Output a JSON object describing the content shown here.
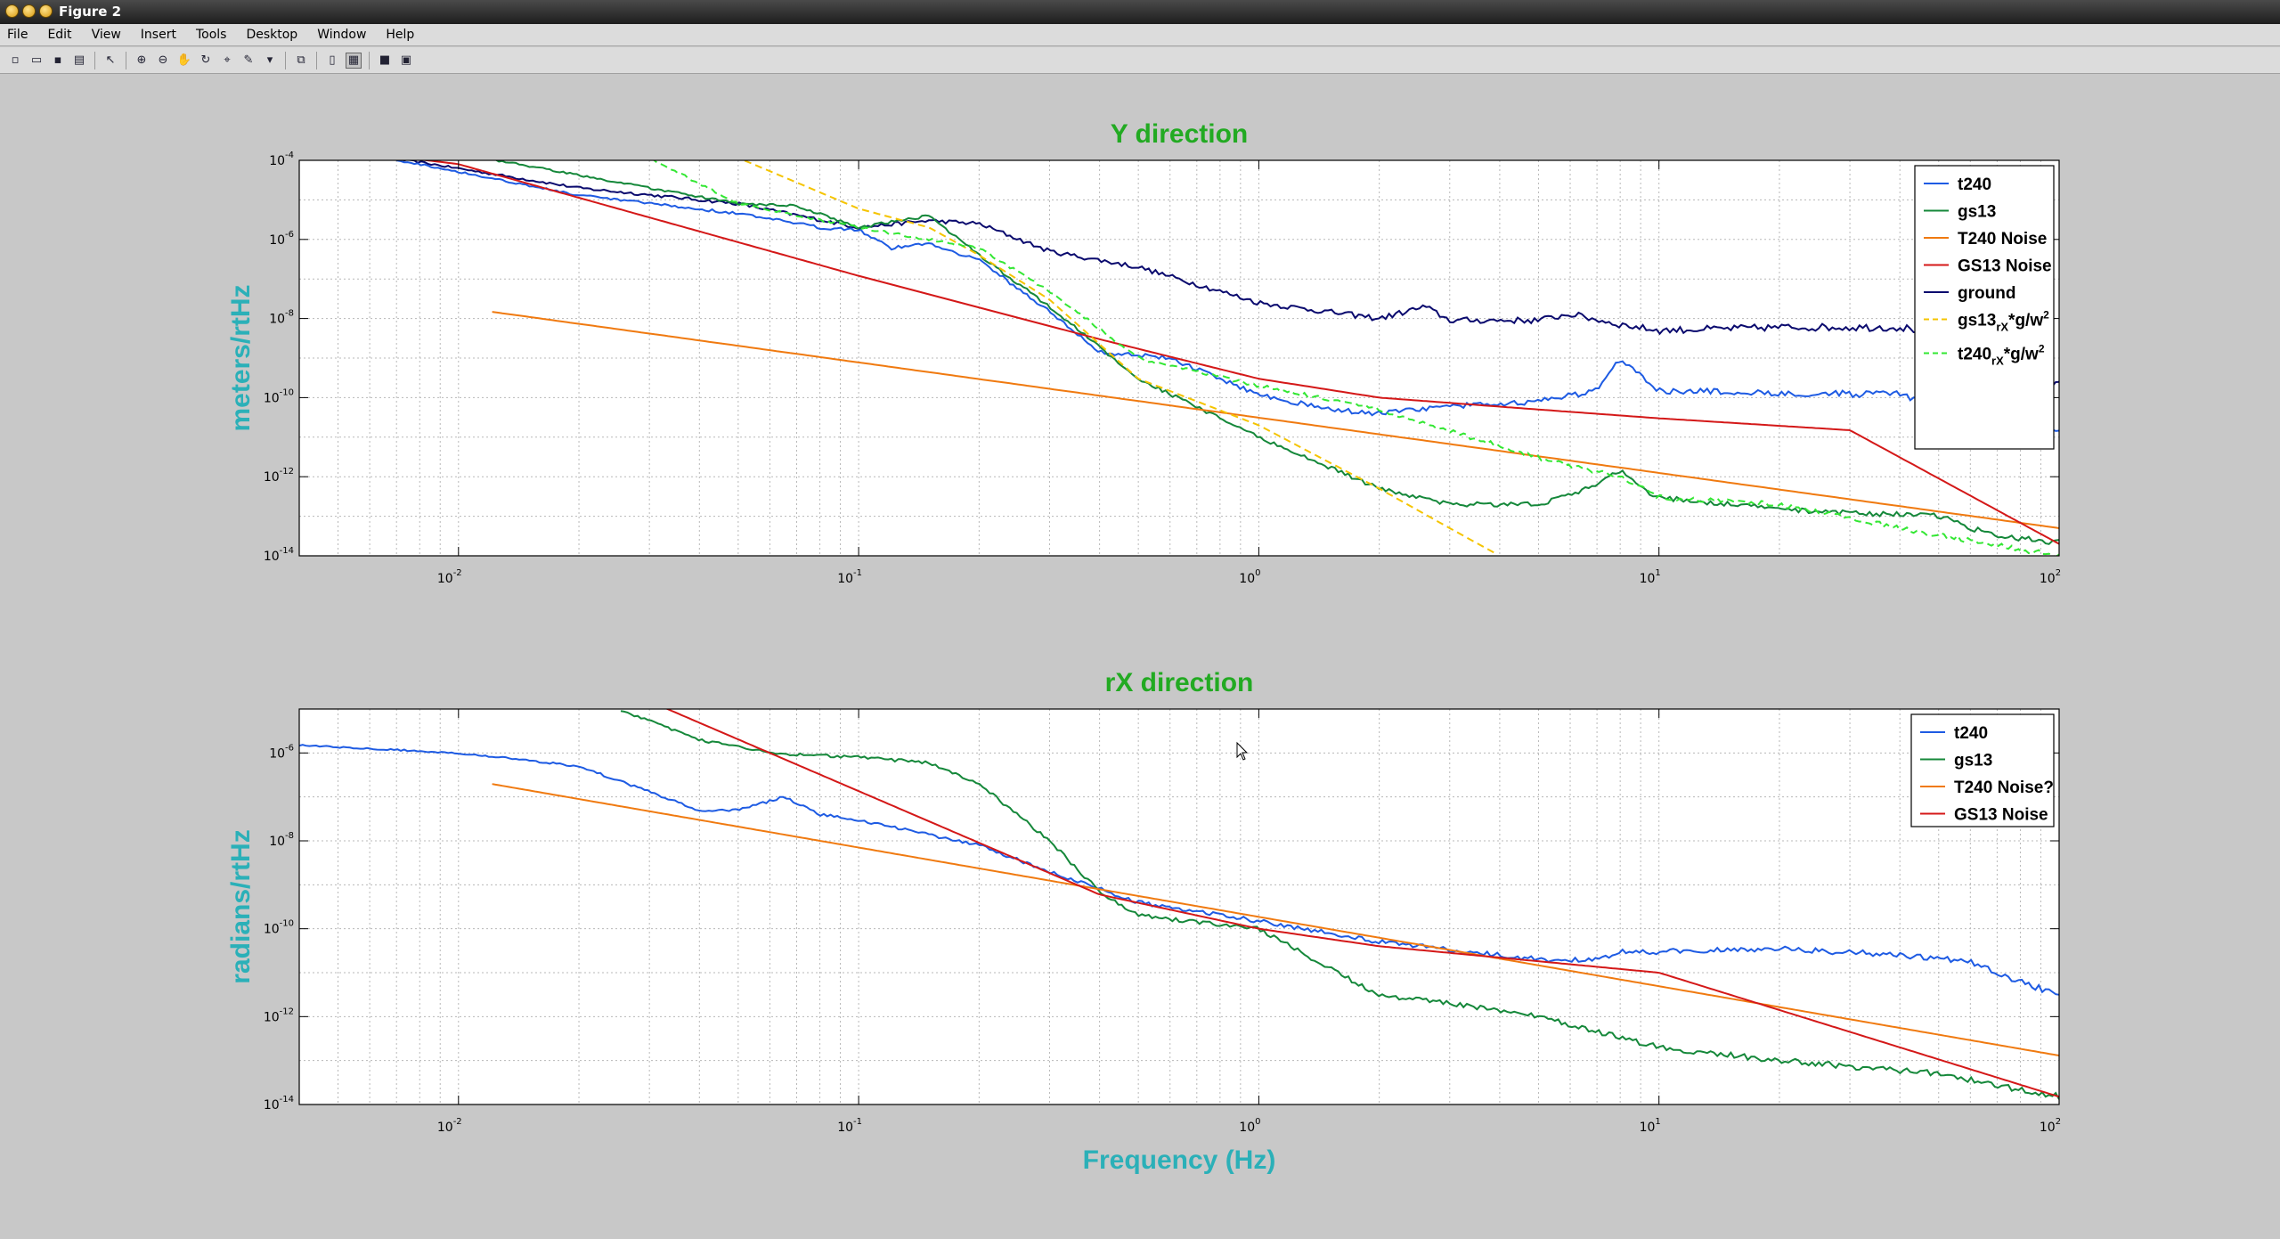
{
  "window": {
    "title": "Figure 2"
  },
  "menu": [
    "File",
    "Edit",
    "View",
    "Insert",
    "Tools",
    "Desktop",
    "Window",
    "Help"
  ],
  "toolbar": [
    {
      "name": "new-figure-icon",
      "glyph": "▫"
    },
    {
      "name": "open-file-icon",
      "glyph": "▭"
    },
    {
      "name": "save-icon",
      "glyph": "▪"
    },
    {
      "name": "print-icon",
      "glyph": "▤"
    },
    {
      "sep": true
    },
    {
      "name": "edit-plot-arrow-icon",
      "glyph": "↖"
    },
    {
      "sep": true
    },
    {
      "name": "zoom-in-icon",
      "glyph": "⊕"
    },
    {
      "name": "zoom-out-icon",
      "glyph": "⊖"
    },
    {
      "name": "pan-hand-icon",
      "glyph": "✋"
    },
    {
      "name": "rotate-3d-icon",
      "glyph": "↻"
    },
    {
      "name": "data-cursor-icon",
      "glyph": "⌖"
    },
    {
      "name": "brush-icon",
      "glyph": "✎"
    },
    {
      "name": "brush-dropdown-icon",
      "glyph": "▾"
    },
    {
      "sep": true
    },
    {
      "name": "link-plot-icon",
      "glyph": "⧉"
    },
    {
      "sep": true
    },
    {
      "name": "colorbar-icon",
      "glyph": "▯"
    },
    {
      "name": "legend-icon",
      "glyph": "▦",
      "active": true
    },
    {
      "sep": true
    },
    {
      "name": "hide-plot-tools-icon",
      "glyph": "■"
    },
    {
      "name": "show-plot-tools-icon",
      "glyph": "▣"
    }
  ],
  "colors": {
    "blue": "#1e5be3",
    "green": "#15883a",
    "orange": "#f07a10",
    "red": "#d41818",
    "navy": "#0a0a6e",
    "yellow": "#f5c400",
    "lime": "#33e733",
    "title": "#22aa22",
    "label": "#2bb0b8"
  },
  "chart_data": [
    {
      "type": "line",
      "title": "Y direction",
      "xlabel": "",
      "ylabel": "meters/rtHz",
      "xscale": "log",
      "yscale": "log",
      "xlim": [
        0.004,
        100
      ],
      "ylim": [
        1e-14,
        0.0001
      ],
      "grid": true,
      "legend_position": "top-right",
      "xticks": [
        {
          "base": "10",
          "exp": "-2"
        },
        {
          "base": "10",
          "exp": "-1"
        },
        {
          "base": "10",
          "exp": "0"
        },
        {
          "base": "10",
          "exp": "1"
        },
        {
          "base": "10",
          "exp": "2"
        }
      ],
      "yticks": [
        {
          "base": "10",
          "exp": "-4"
        },
        {
          "base": "10",
          "exp": "-6"
        },
        {
          "base": "10",
          "exp": "-8"
        },
        {
          "base": "10",
          "exp": "-10"
        },
        {
          "base": "10",
          "exp": "-12"
        },
        {
          "base": "10",
          "exp": "-14"
        }
      ],
      "legend": [
        {
          "text": "t240",
          "color": "blue",
          "dash": false
        },
        {
          "text": "gs13",
          "color": "green",
          "dash": false
        },
        {
          "text": "T240 Noise",
          "color": "orange",
          "dash": false
        },
        {
          "text": "GS13 Noise",
          "color": "red",
          "dash": false
        },
        {
          "text": "ground",
          "color": "navy",
          "dash": false
        },
        {
          "text": "gs13",
          "sub": "rX",
          "tail": "*g/w",
          "sup": "2",
          "color": "yellow",
          "dash": true
        },
        {
          "text": "t240",
          "sub": "rX",
          "tail": "*g/w",
          "sup": "2",
          "color": "lime",
          "dash": true
        }
      ],
      "series": [
        {
          "name": "ground",
          "color": "navy",
          "noise": 0.07,
          "points": [
            [
              0.004,
              0.00022
            ],
            [
              0.008,
              9e-05
            ],
            [
              0.02,
              2e-05
            ],
            [
              0.05,
              8e-06
            ],
            [
              0.1,
              2e-06
            ],
            [
              0.15,
              3e-06
            ],
            [
              0.2,
              2.5e-06
            ],
            [
              0.3,
              5e-07
            ],
            [
              0.5,
              2e-07
            ],
            [
              1,
              2.5e-08
            ],
            [
              2,
              1e-08
            ],
            [
              2.6,
              2e-08
            ],
            [
              3,
              9e-09
            ],
            [
              5,
              9e-09
            ],
            [
              6,
              1.3e-08
            ],
            [
              8,
              7e-09
            ],
            [
              10,
              5e-09
            ],
            [
              20,
              6e-09
            ],
            [
              40,
              6e-09
            ],
            [
              45,
              5e-09
            ],
            [
              50,
              8e-10
            ],
            [
              60,
              5e-10
            ],
            [
              100,
              2e-10
            ]
          ]
        },
        {
          "name": "t240",
          "color": "blue",
          "noise": 0.06,
          "points": [
            [
              0.004,
              0.00028
            ],
            [
              0.008,
              8e-05
            ],
            [
              0.02,
              1.3e-05
            ],
            [
              0.05,
              4.5e-06
            ],
            [
              0.08,
              2e-06
            ],
            [
              0.1,
              1.8e-06
            ],
            [
              0.12,
              6e-07
            ],
            [
              0.15,
              8e-07
            ],
            [
              0.2,
              3e-07
            ],
            [
              0.3,
              1.5e-08
            ],
            [
              0.4,
              1.4e-09
            ],
            [
              0.5,
              1.2e-09
            ],
            [
              0.6,
              1e-09
            ],
            [
              0.8,
              3e-10
            ],
            [
              1,
              1.2e-10
            ],
            [
              1.5,
              5e-11
            ],
            [
              2,
              4e-11
            ],
            [
              3,
              6e-11
            ],
            [
              5,
              8e-11
            ],
            [
              7,
              1.5e-10
            ],
            [
              8,
              1e-09
            ],
            [
              9,
              4e-10
            ],
            [
              10,
              1.5e-10
            ],
            [
              20,
              1.3e-10
            ],
            [
              40,
              1.2e-10
            ],
            [
              60,
              3e-11
            ],
            [
              100,
              1.5e-11
            ]
          ]
        },
        {
          "name": "gs13",
          "color": "green",
          "noise": 0.05,
          "points": [
            [
              0.004,
              0.005
            ],
            [
              0.01,
              0.00015
            ],
            [
              0.03,
              2e-05
            ],
            [
              0.05,
              8e-06
            ],
            [
              0.07,
              7e-06
            ],
            [
              0.1,
              2e-06
            ],
            [
              0.15,
              4e-06
            ],
            [
              0.2,
              4e-07
            ],
            [
              0.3,
              2e-08
            ],
            [
              0.5,
              3e-10
            ],
            [
              1,
              1e-11
            ],
            [
              2,
              5e-13
            ],
            [
              3,
              2e-13
            ],
            [
              5,
              2e-13
            ],
            [
              7,
              6e-13
            ],
            [
              8,
              1.5e-12
            ],
            [
              9,
              5e-13
            ],
            [
              10,
              3e-13
            ],
            [
              20,
              1.5e-13
            ],
            [
              50,
              1e-13
            ],
            [
              70,
              3e-14
            ],
            [
              100,
              2.2e-14
            ]
          ]
        },
        {
          "name": "T240 Noise",
          "color": "orange",
          "noise": 0,
          "points": [
            [
              0.012,
              1.5e-08
            ],
            [
              100,
              5e-14
            ]
          ]
        },
        {
          "name": "GS13 Noise",
          "color": "red",
          "noise": 0,
          "points": [
            [
              0.004,
              0.00025
            ],
            [
              0.01,
              8e-05
            ],
            [
              0.1,
              1.2e-07
            ],
            [
              0.4,
              3e-09
            ],
            [
              1,
              3e-10
            ],
            [
              2,
              1e-10
            ],
            [
              5,
              5e-11
            ],
            [
              10,
              3e-11
            ],
            [
              30,
              1.5e-11
            ],
            [
              100,
              2e-14
            ]
          ]
        },
        {
          "name": "gs13 rX*g/w2",
          "color": "yellow",
          "noise": 0,
          "dash": true,
          "points": [
            [
              0.04,
              0.0003
            ],
            [
              0.1,
              6e-06
            ],
            [
              0.15,
              2e-06
            ],
            [
              0.2,
              4e-07
            ],
            [
              0.3,
              3e-08
            ],
            [
              0.5,
              3e-10
            ],
            [
              1,
              2e-11
            ],
            [
              2,
              5e-13
            ],
            [
              3,
              5e-14
            ],
            [
              4,
              1e-14
            ]
          ]
        },
        {
          "name": "t240 rX*g/w2",
          "color": "lime",
          "noise": 0.05,
          "dash": true,
          "points": [
            [
              0.025,
              0.0003
            ],
            [
              0.05,
              8e-06
            ],
            [
              0.1,
              2e-06
            ],
            [
              0.2,
              6e-07
            ],
            [
              0.3,
              5e-08
            ],
            [
              0.5,
              1e-09
            ],
            [
              1,
              2e-10
            ],
            [
              2,
              5e-11
            ],
            [
              5,
              3e-12
            ],
            [
              8,
              1e-12
            ],
            [
              10,
              3e-13
            ],
            [
              20,
              2e-13
            ],
            [
              40,
              5e-14
            ],
            [
              100,
              1e-14
            ]
          ]
        }
      ]
    },
    {
      "type": "line",
      "title": "rX direction",
      "xlabel": "Frequency (Hz)",
      "ylabel": "radians/rtHz",
      "xscale": "log",
      "yscale": "log",
      "xlim": [
        0.004,
        100
      ],
      "ylim": [
        1e-14,
        1e-05
      ],
      "grid": true,
      "legend_position": "top-right",
      "xticks": [
        {
          "base": "10",
          "exp": "-2"
        },
        {
          "base": "10",
          "exp": "-1"
        },
        {
          "base": "10",
          "exp": "0"
        },
        {
          "base": "10",
          "exp": "1"
        },
        {
          "base": "10",
          "exp": "2"
        }
      ],
      "yticks": [
        {
          "base": "10",
          "exp": "-6"
        },
        {
          "base": "10",
          "exp": "-8"
        },
        {
          "base": "10",
          "exp": "-10"
        },
        {
          "base": "10",
          "exp": "-12"
        },
        {
          "base": "10",
          "exp": "-14"
        }
      ],
      "legend": [
        {
          "text": "t240",
          "color": "blue",
          "dash": false
        },
        {
          "text": "gs13",
          "color": "green",
          "dash": false
        },
        {
          "text": "T240 Noise?",
          "color": "orange",
          "dash": false
        },
        {
          "text": "GS13 Noise",
          "color": "red",
          "dash": false
        }
      ],
      "series": [
        {
          "name": "t240",
          "color": "blue",
          "noise": 0.05,
          "points": [
            [
              0.004,
              1.5e-06
            ],
            [
              0.01,
              1e-06
            ],
            [
              0.02,
              5e-07
            ],
            [
              0.04,
              5e-08
            ],
            [
              0.05,
              5e-08
            ],
            [
              0.065,
              1e-07
            ],
            [
              0.08,
              4e-08
            ],
            [
              0.1,
              3e-08
            ],
            [
              0.2,
              8e-09
            ],
            [
              0.3,
              2e-09
            ],
            [
              0.5,
              4e-10
            ],
            [
              1,
              1.5e-10
            ],
            [
              2,
              5e-11
            ],
            [
              5,
              2e-11
            ],
            [
              7,
              2e-11
            ],
            [
              8,
              3e-11
            ],
            [
              10,
              3e-11
            ],
            [
              20,
              3.5e-11
            ],
            [
              40,
              2.5e-11
            ],
            [
              60,
              1.8e-11
            ],
            [
              70,
              1e-11
            ],
            [
              100,
              3e-12
            ]
          ]
        },
        {
          "name": "gs13",
          "color": "green",
          "noise": 0.05,
          "points": [
            [
              0.025,
              1e-05
            ],
            [
              0.04,
              2e-06
            ],
            [
              0.06,
              1e-06
            ],
            [
              0.1,
              8e-07
            ],
            [
              0.15,
              6e-07
            ],
            [
              0.2,
              2e-07
            ],
            [
              0.3,
              1e-08
            ],
            [
              0.4,
              7e-10
            ],
            [
              0.5,
              2e-10
            ],
            [
              1,
              1e-10
            ],
            [
              2,
              3e-12
            ],
            [
              3,
              2e-12
            ],
            [
              5,
              1e-12
            ],
            [
              10,
              2e-13
            ],
            [
              20,
              1e-13
            ],
            [
              50,
              5e-14
            ],
            [
              100,
              1.5e-14
            ]
          ]
        },
        {
          "name": "T240 Noise?",
          "color": "orange",
          "noise": 0,
          "points": [
            [
              0.012,
              2e-07
            ],
            [
              100,
              1.3e-13
            ]
          ]
        },
        {
          "name": "GS13 Noise",
          "color": "red",
          "noise": 0,
          "points": [
            [
              0.03,
              1.5e-05
            ],
            [
              0.4,
              6e-10
            ],
            [
              1,
              1e-10
            ],
            [
              2,
              4e-11
            ],
            [
              10,
              1e-11
            ],
            [
              100,
              1.5e-14
            ]
          ]
        }
      ]
    }
  ]
}
